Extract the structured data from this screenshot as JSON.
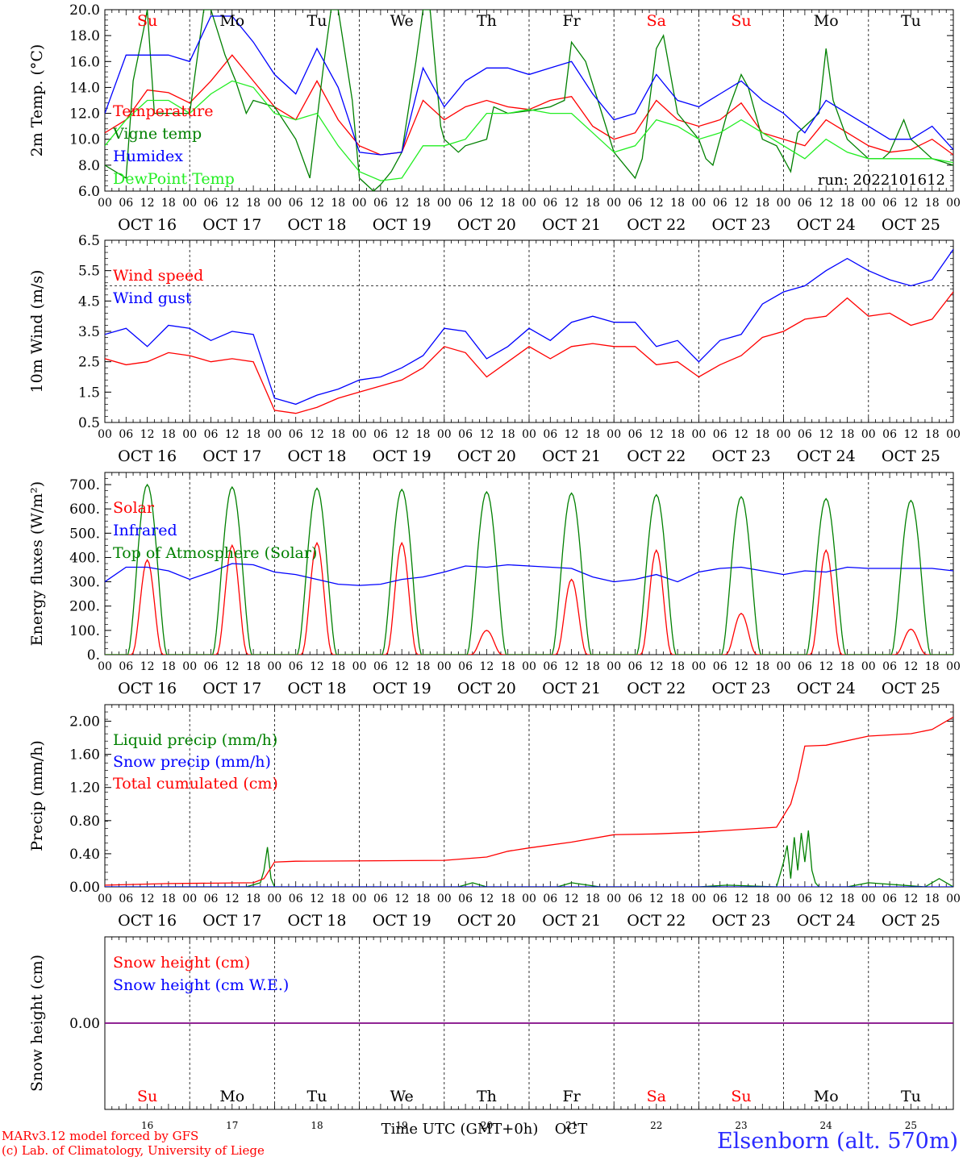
{
  "day_labels": [
    "Su",
    "Mo",
    "Tu",
    "We",
    "Th",
    "Fr",
    "Sa",
    "Su",
    "Mo",
    "Tu"
  ],
  "weekend_days": [
    0,
    6,
    7
  ],
  "hour_labels": [
    "00",
    "06",
    "12",
    "18"
  ],
  "last_hour_label": "00",
  "date_labels": [
    "OCT 16",
    "OCT 17",
    "OCT 18",
    "OCT 19",
    "OCT 20",
    "OCT 21",
    "OCT 22",
    "OCT 23",
    "OCT 24",
    "OCT 25"
  ],
  "bottom_day_numbers": [
    "16",
    "17",
    "18",
    "19",
    "20",
    "21",
    "22",
    "23",
    "24",
    "25"
  ],
  "colors": {
    "red": "#ff0000",
    "green": "#008000",
    "blue": "#0000ff",
    "lightgreen": "#22ee22",
    "purple": "#800080",
    "grid": "#000000"
  },
  "chart_data": [
    {
      "type": "line",
      "ylabel": "2m Temp. (°C)",
      "ylim": [
        6,
        20
      ],
      "yticks": [
        "6.0",
        "8.0",
        "10.0",
        "12.0",
        "14.0",
        "16.0",
        "18.0",
        "20.0"
      ],
      "x_unit": "hours from 2022-10-16 00 UTC",
      "annotation": "run: 2022101612",
      "series": [
        {
          "name": "Temperature",
          "color": "#ff0000",
          "x": [
            0,
            6,
            12,
            18,
            24,
            30,
            36,
            42,
            48,
            54,
            60,
            66,
            72,
            78,
            84,
            90,
            96,
            102,
            108,
            114,
            120,
            126,
            132,
            138,
            144,
            150,
            156,
            162,
            168,
            174,
            180,
            186,
            192,
            198,
            204,
            210,
            216,
            222,
            228,
            234,
            240
          ],
          "y": [
            10.5,
            11.5,
            13.8,
            13.6,
            12.8,
            14.5,
            16.5,
            14.5,
            12.5,
            11.5,
            14.5,
            11.5,
            9.5,
            8.8,
            9.0,
            13.0,
            11.5,
            12.5,
            13.0,
            12.5,
            12.3,
            13.0,
            13.3,
            11.0,
            10.0,
            10.5,
            13.0,
            11.5,
            11.0,
            11.5,
            12.8,
            10.5,
            10.0,
            9.5,
            11.5,
            10.5,
            9.5,
            9.0,
            9.2,
            10.0,
            8.8
          ]
        },
        {
          "name": "Vigne temp",
          "color": "#008000",
          "x": [
            0,
            6,
            8,
            11,
            12,
            14,
            18,
            24,
            28,
            30,
            34,
            37,
            40,
            42,
            48,
            54,
            58,
            62,
            64,
            66,
            70,
            72,
            76,
            78,
            81,
            84,
            88,
            90,
            92,
            95,
            96,
            98,
            100,
            102,
            108,
            110,
            114,
            120,
            126,
            130,
            132,
            136,
            140,
            144,
            150,
            152,
            156,
            158,
            162,
            168,
            170,
            172,
            176,
            180,
            182,
            186,
            190,
            192,
            194,
            196,
            198,
            202,
            204,
            206,
            210,
            214,
            216,
            220,
            222,
            226,
            228,
            232,
            234,
            240
          ],
          "y": [
            8.0,
            7.0,
            14.5,
            18.5,
            20.0,
            12.0,
            12.0,
            12.0,
            20.0,
            20.0,
            16.5,
            14.5,
            12.0,
            13.0,
            12.5,
            10.0,
            7.0,
            16.0,
            20.0,
            20.0,
            13.0,
            7.0,
            6.0,
            6.5,
            7.5,
            9.0,
            16.0,
            20.0,
            20.0,
            11.0,
            10.0,
            9.5,
            9.0,
            9.5,
            10.0,
            12.5,
            12.0,
            12.2,
            12.5,
            13.0,
            17.5,
            16.0,
            12.5,
            9.0,
            7.0,
            8.5,
            17.0,
            18.0,
            12.0,
            10.0,
            8.5,
            8.0,
            12.0,
            15.0,
            14.0,
            10.0,
            9.5,
            8.5,
            7.5,
            10.5,
            11.0,
            12.0,
            17.0,
            13.0,
            10.0,
            9.0,
            8.5,
            8.5,
            9.0,
            11.5,
            10.0,
            9.0,
            8.5,
            8.0
          ]
        },
        {
          "name": "Humidex",
          "color": "#0000ff",
          "x": [
            0,
            6,
            12,
            18,
            24,
            30,
            36,
            42,
            48,
            54,
            60,
            66,
            72,
            78,
            84,
            90,
            96,
            102,
            108,
            114,
            120,
            126,
            132,
            138,
            144,
            150,
            156,
            162,
            168,
            174,
            180,
            186,
            192,
            198,
            204,
            210,
            216,
            222,
            228,
            234,
            240
          ],
          "y": [
            12.0,
            16.5,
            16.5,
            16.5,
            16.0,
            19.5,
            19.5,
            17.5,
            15.0,
            13.5,
            17.0,
            14.0,
            9.0,
            8.8,
            9.0,
            15.5,
            12.5,
            14.5,
            15.5,
            15.5,
            15.0,
            15.5,
            16.0,
            13.5,
            11.5,
            12.0,
            15.0,
            13.0,
            12.5,
            13.5,
            14.5,
            13.0,
            12.0,
            10.5,
            13.0,
            12.0,
            11.0,
            10.0,
            10.0,
            11.0,
            9.2
          ]
        },
        {
          "name": "DewPoint Temp",
          "color": "#22ee22",
          "x": [
            0,
            6,
            12,
            18,
            24,
            30,
            36,
            42,
            48,
            54,
            60,
            66,
            72,
            78,
            84,
            90,
            96,
            102,
            108,
            114,
            120,
            126,
            132,
            138,
            144,
            150,
            156,
            162,
            168,
            174,
            180,
            186,
            192,
            198,
            204,
            210,
            216,
            222,
            228,
            234,
            240
          ],
          "y": [
            9.5,
            11.5,
            13.0,
            13.0,
            12.0,
            13.5,
            14.5,
            14.0,
            12.0,
            11.5,
            12.0,
            9.5,
            7.5,
            6.8,
            7.0,
            9.5,
            9.5,
            10.0,
            12.0,
            12.0,
            12.3,
            12.0,
            12.0,
            10.5,
            9.0,
            9.5,
            11.5,
            11.0,
            10.0,
            10.5,
            11.5,
            10.5,
            9.5,
            8.5,
            10.0,
            9.0,
            8.5,
            8.5,
            8.5,
            8.5,
            8.2
          ]
        }
      ]
    },
    {
      "type": "line",
      "ylabel": "10m Wind (m/s)",
      "ylim": [
        0.5,
        6.5
      ],
      "yticks": [
        "0.5",
        "1.5",
        "2.5",
        "3.5",
        "4.5",
        "5.5",
        "6.5"
      ],
      "reference_line": 5.0,
      "series": [
        {
          "name": "Wind speed",
          "color": "#ff0000",
          "x": [
            0,
            6,
            12,
            18,
            24,
            30,
            36,
            42,
            48,
            54,
            60,
            66,
            72,
            78,
            84,
            90,
            96,
            102,
            108,
            114,
            120,
            126,
            132,
            138,
            144,
            150,
            156,
            162,
            168,
            174,
            180,
            186,
            192,
            198,
            204,
            210,
            216,
            222,
            228,
            234,
            240
          ],
          "y": [
            2.6,
            2.4,
            2.5,
            2.8,
            2.7,
            2.5,
            2.6,
            2.5,
            0.9,
            0.8,
            1.0,
            1.3,
            1.5,
            1.7,
            1.9,
            2.3,
            3.0,
            2.8,
            2.0,
            2.5,
            3.0,
            2.6,
            3.0,
            3.1,
            3.0,
            3.0,
            2.4,
            2.5,
            2.0,
            2.4,
            2.7,
            3.3,
            3.5,
            3.9,
            4.0,
            4.6,
            4.0,
            4.1,
            3.7,
            3.9,
            4.8
          ]
        },
        {
          "name": "Wind gust",
          "color": "#0000ff",
          "x": [
            0,
            6,
            12,
            18,
            24,
            30,
            36,
            42,
            48,
            54,
            60,
            66,
            72,
            78,
            84,
            90,
            96,
            102,
            108,
            114,
            120,
            126,
            132,
            138,
            144,
            150,
            156,
            162,
            168,
            174,
            180,
            186,
            192,
            198,
            204,
            210,
            216,
            222,
            228,
            234,
            240
          ],
          "y": [
            3.4,
            3.6,
            3.0,
            3.7,
            3.6,
            3.2,
            3.5,
            3.4,
            1.3,
            1.1,
            1.4,
            1.6,
            1.9,
            2.0,
            2.3,
            2.7,
            3.6,
            3.5,
            2.6,
            3.0,
            3.6,
            3.2,
            3.8,
            4.0,
            3.8,
            3.8,
            3.0,
            3.2,
            2.5,
            3.2,
            3.4,
            4.4,
            4.8,
            5.0,
            5.5,
            5.9,
            5.5,
            5.2,
            5.0,
            5.2,
            6.2
          ]
        }
      ]
    },
    {
      "type": "line",
      "ylabel": "Energy fluxes (W/m²)",
      "ylim": [
        0,
        750
      ],
      "yticks": [
        "0.",
        "100.",
        "200.",
        "300.",
        "400.",
        "500.",
        "600.",
        "700."
      ],
      "series": [
        {
          "name": "Solar",
          "color": "#ff0000",
          "day_peaks": [
            390,
            450,
            460,
            460,
            100,
            310,
            430,
            170,
            430,
            105
          ]
        },
        {
          "name": "Infrared",
          "color": "#0000ff",
          "x": [
            0,
            6,
            12,
            18,
            24,
            30,
            36,
            42,
            48,
            54,
            60,
            66,
            72,
            78,
            84,
            90,
            96,
            102,
            108,
            114,
            120,
            126,
            132,
            138,
            144,
            150,
            156,
            162,
            168,
            174,
            180,
            186,
            192,
            198,
            204,
            210,
            216,
            222,
            228,
            234,
            240
          ],
          "y": [
            300,
            360,
            360,
            345,
            310,
            340,
            375,
            370,
            340,
            330,
            310,
            290,
            285,
            290,
            310,
            320,
            340,
            365,
            360,
            370,
            365,
            360,
            355,
            320,
            300,
            310,
            330,
            300,
            340,
            355,
            360,
            345,
            330,
            345,
            340,
            360,
            355,
            355,
            355,
            355,
            345
          ]
        },
        {
          "name": "Top of Atmosphere (Solar)",
          "color": "#008000",
          "day_peaks": [
            700,
            690,
            685,
            680,
            670,
            665,
            658,
            650,
            642,
            635
          ]
        }
      ]
    },
    {
      "type": "line",
      "ylabel": "Precip (mm/h)",
      "ylim": [
        0,
        2.2
      ],
      "yticks": [
        "0.00",
        "0.40",
        "0.80",
        "1.20",
        "1.60",
        "2.00"
      ],
      "series": [
        {
          "name": "Liquid precip (mm/h)",
          "color": "#008000",
          "x": [
            0,
            40,
            44,
            45,
            46,
            47,
            48,
            50,
            100,
            104,
            108,
            128,
            132,
            140,
            168,
            176,
            190,
            192,
            193,
            194,
            195,
            196,
            197,
            198,
            199,
            200,
            201,
            202,
            210,
            216,
            232,
            236,
            240
          ],
          "y": [
            0,
            0,
            0.05,
            0.2,
            0.48,
            0.1,
            0,
            0,
            0,
            0.05,
            0,
            0,
            0.05,
            0,
            0,
            0.02,
            0,
            0.3,
            0.5,
            0.1,
            0.6,
            0.2,
            0.65,
            0.3,
            0.68,
            0.2,
            0.05,
            0,
            0,
            0.05,
            0,
            0.1,
            0
          ]
        },
        {
          "name": "Snow precip (mm/h)",
          "color": "#0000ff",
          "x": [
            0,
            240
          ],
          "y": [
            0,
            0
          ]
        },
        {
          "name": "Total cumulated (cm)",
          "color": "#ff0000",
          "x": [
            0,
            18,
            42,
            45,
            48,
            54,
            96,
            108,
            114,
            120,
            132,
            144,
            156,
            168,
            186,
            190,
            194,
            196,
            198,
            204,
            216,
            228,
            234,
            240
          ],
          "y": [
            0.02,
            0.04,
            0.05,
            0.1,
            0.3,
            0.31,
            0.32,
            0.36,
            0.43,
            0.47,
            0.54,
            0.63,
            0.64,
            0.66,
            0.71,
            0.72,
            1.0,
            1.3,
            1.7,
            1.71,
            1.82,
            1.85,
            1.9,
            2.05
          ]
        }
      ]
    },
    {
      "type": "line",
      "ylabel": "Snow height (cm)",
      "ylim": [
        -1,
        1
      ],
      "yticks": [
        "0.00"
      ],
      "series": [
        {
          "name": "Snow height (cm)",
          "color": "#ff0000",
          "x": [
            0,
            240
          ],
          "y": [
            0,
            0
          ]
        },
        {
          "name": "Snow height (cm W.E.)",
          "color": "#0000ff",
          "x": [
            0,
            240
          ],
          "y": [
            0,
            0
          ]
        }
      ]
    }
  ],
  "xlabel_bottom": "Time UTC (GMT+0h)",
  "month_label": "OCT",
  "footer": {
    "credit_line1": "MARv3.12 model forced by GFS",
    "credit_line2": "(c) Lab. of Climatology, University of Liege",
    "station": "Elsenborn (alt. 570m)"
  }
}
